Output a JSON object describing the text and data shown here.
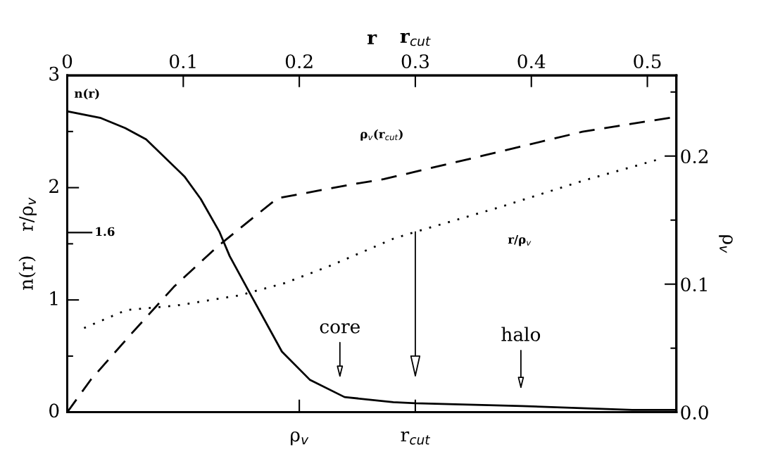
{
  "chart_data": {
    "type": "line",
    "xlim": [
      0,
      0.525
    ],
    "xticks": [
      0,
      0.1,
      0.2,
      0.3,
      0.4,
      0.5
    ],
    "xlabel": "r",
    "ylim": [
      0,
      3
    ],
    "yticks": [
      0,
      {
        "value": 0.5,
        "label": null
      },
      1,
      {
        "value": 1.5,
        "label": null
      },
      2,
      {
        "value": 2.5,
        "label": null
      },
      3
    ],
    "ylabel": "n(r)    r/ρ$_{v}$",
    "y2lim": [
      0,
      0.263
    ],
    "y2ticks": [
      {
        "value": 0.0,
        "label": "0.0"
      },
      {
        "value": 0.05,
        "label": null
      },
      0.1,
      {
        "value": 0.15,
        "label": null
      },
      0.2,
      {
        "value": 0.25,
        "label": null
      }
    ],
    "y2label": "ρ$_{v}$",
    "grid": false,
    "legend": false,
    "marker": "none",
    "series": [
      {
        "name": "n(r)",
        "color": "#000000",
        "line_style": "solid",
        "x": [
          0,
          0.029,
          0.05,
          0.068,
          0.101,
          0.115,
          0.131,
          0.14,
          0.159,
          0.185,
          0.209,
          0.239,
          0.281,
          0.3,
          0.392,
          0.487,
          0.525
        ],
        "values": [
          2.68,
          2.62,
          2.53,
          2.43,
          2.1,
          1.9,
          1.61,
          1.39,
          1.03,
          0.54,
          0.29,
          0.135,
          0.09,
          0.08,
          0.055,
          0.02,
          0.02
        ]
      },
      {
        "name": "ρ$_{v}$(r$_{cut}$)",
        "color": "#000000",
        "line_style": "dashed",
        "axis": "y2",
        "x": [
          0,
          0.0204,
          0.055,
          0.092,
          0.129,
          0.159,
          0.181,
          0.246,
          0.273,
          0.357,
          0.444,
          0.52,
          0.525
        ],
        "values": [
          0,
          0.0255,
          0.061,
          0.098,
          0.129,
          0.151,
          0.167,
          0.178,
          0.182,
          0.2,
          0.219,
          0.23,
          0.231
        ]
      },
      {
        "name": "r/ρ$_{v}$",
        "color": "#000000",
        "line_style": "dotted",
        "x": [
          0.0145,
          0.051,
          0.094,
          0.148,
          0.1875,
          0.228,
          0.281,
          0.298,
          0.374,
          0.444,
          0.509
        ],
        "values": [
          0.75,
          0.91,
          0.95,
          1.04,
          1.15,
          1.31,
          1.545,
          1.6,
          1.83,
          2.06,
          2.25
        ]
      }
    ],
    "annotations": [
      "core",
      "halo",
      "r$_{cut}$",
      "ρ$_{v}$",
      "r$_{cut}$",
      "1.6"
    ]
  }
}
